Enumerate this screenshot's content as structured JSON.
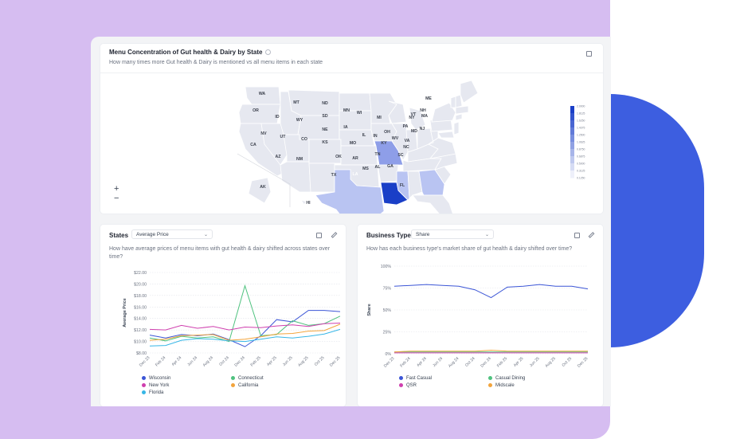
{
  "map_card": {
    "title": "Menu Concentration of Gut health & Dairy by State",
    "subtitle": "How many times more Gut health & Dairy is mentioned vs all menu items in each state",
    "zoom_in": "+",
    "zoom_out": "−",
    "colors": {
      "base": "#e6e8f0",
      "light": "#b9c4f2",
      "mid": "#8e9ee8",
      "dark": "#1a3fc7",
      "border": "#ffffff"
    },
    "state_labels": [
      "WA",
      "OR",
      "CA",
      "NV",
      "ID",
      "MT",
      "WY",
      "UT",
      "AZ",
      "CO",
      "NM",
      "ND",
      "SD",
      "NE",
      "KS",
      "OK",
      "TX",
      "MN",
      "IA",
      "MO",
      "AR",
      "LA",
      "WI",
      "IL",
      "MS",
      "MI",
      "IN",
      "KY",
      "TN",
      "AL",
      "OH",
      "GA",
      "FL",
      "SC",
      "NC",
      "VA",
      "WV",
      "PA",
      "NY",
      "MD",
      "NJ",
      "DE",
      "CT",
      "RI",
      "MA",
      "NH",
      "VT",
      "ME",
      "AK",
      "HI"
    ],
    "legend_ticks": [
      "2.0000",
      "1.8125",
      "1.6250",
      "1.4375",
      "1.2500",
      "1.0625",
      "0.8750",
      "0.6875",
      "0.5000",
      "0.3125",
      "0.1250"
    ]
  },
  "states_card": {
    "title": "States",
    "select_value": "Average Price",
    "subtitle": "How have average prices of menu items with gut health & dairy shifted across states over time?",
    "chart_data": {
      "type": "line",
      "x": [
        "Dec 23",
        "Feb 24",
        "Apr 24",
        "Jun 24",
        "Aug 24",
        "Oct 24",
        "Dec 24",
        "Feb 25",
        "Apr 25",
        "Jun 25",
        "Aug 25",
        "Oct 25",
        "Dec 25"
      ],
      "ylabel": "Average Price",
      "ylim": [
        8,
        22
      ],
      "yticks": [
        "$8.00",
        "$10.00",
        "$12.00",
        "$14.00",
        "$16.00",
        "$18.00",
        "$20.00",
        "$22.00"
      ],
      "series": [
        {
          "name": "Wisconsin",
          "color": "#3b55d6",
          "values": [
            11.1,
            10.6,
            11.2,
            11.0,
            11.3,
            10.3,
            9.1,
            11.0,
            13.8,
            13.4,
            15.4,
            15.4,
            15.2
          ]
        },
        {
          "name": "Connecticut",
          "color": "#4fc27f",
          "values": [
            10.6,
            10.1,
            10.9,
            10.6,
            10.8,
            10.0,
            19.7,
            11.0,
            11.2,
            13.6,
            12.8,
            13.1,
            14.4
          ]
        },
        {
          "name": "New York",
          "color": "#cf3fae",
          "values": [
            12.1,
            12.0,
            12.8,
            12.3,
            12.6,
            12.0,
            12.5,
            12.4,
            12.7,
            12.9,
            12.6,
            13.1,
            13.2
          ]
        },
        {
          "name": "California",
          "color": "#f2a43c",
          "values": [
            10.2,
            10.4,
            11.0,
            11.1,
            11.2,
            10.2,
            10.4,
            10.8,
            11.3,
            11.4,
            11.8,
            11.9,
            13.0
          ]
        },
        {
          "name": "Florida",
          "color": "#36b6e6",
          "values": [
            9.2,
            9.3,
            10.2,
            10.5,
            10.4,
            10.1,
            10.0,
            10.4,
            10.8,
            10.6,
            10.9,
            11.3,
            12.1
          ]
        }
      ]
    }
  },
  "business_card": {
    "title": "Business Type",
    "select_value": "Share",
    "subtitle": "How has each business type's market share of gut health & dairy shifted over time?",
    "chart_data": {
      "type": "line",
      "x": [
        "Dec 23",
        "Feb 24",
        "Apr 24",
        "Jun 24",
        "Aug 24",
        "Oct 24",
        "Dec 24",
        "Feb 25",
        "Apr 25",
        "Jun 25",
        "Aug 25",
        "Oct 25",
        "Dec 25"
      ],
      "ylabel": "Share",
      "ylim": [
        0,
        100
      ],
      "yticks": [
        "0%",
        "25%",
        "50%",
        "75%",
        "100%"
      ],
      "series": [
        {
          "name": "Fast Casual",
          "color": "#3b55d6",
          "values": [
            77,
            78,
            79,
            78,
            77,
            73,
            64,
            76,
            77,
            79,
            77,
            77,
            74
          ]
        },
        {
          "name": "Casual Dining",
          "color": "#4fc27f",
          "values": [
            2,
            2,
            2,
            2,
            2,
            2,
            2,
            2,
            2,
            2,
            2,
            2,
            2
          ]
        },
        {
          "name": "QSR",
          "color": "#cf3fae",
          "values": [
            1,
            1,
            1,
            1,
            1,
            1,
            1,
            1,
            1,
            1,
            1,
            1,
            1
          ]
        },
        {
          "name": "Midscale",
          "color": "#f2a43c",
          "values": [
            2,
            3,
            3,
            3,
            3,
            3,
            4,
            3,
            3,
            3,
            3,
            3,
            3
          ]
        }
      ]
    }
  }
}
